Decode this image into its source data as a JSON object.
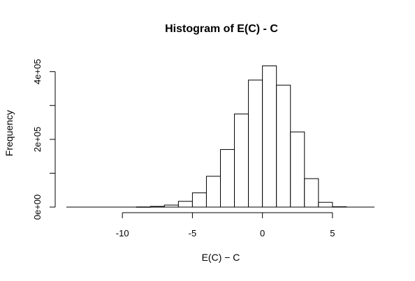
{
  "chart_data": {
    "type": "bar",
    "title": "Histogram of E(C) - C",
    "xlabel": "E(C) − C",
    "ylabel": "Frequency",
    "xlim": [
      -14,
      8
    ],
    "ylim": [
      0,
      420000
    ],
    "x_ticks": [
      -10,
      -5,
      0,
      5
    ],
    "x_tick_labels": [
      "-10",
      "-5",
      "0",
      "5"
    ],
    "y_ticks": [
      0,
      100000,
      200000,
      300000,
      400000
    ],
    "y_tick_labels": [
      "0e+00",
      "",
      "2e+05",
      "",
      "4e+05"
    ],
    "grid": false,
    "bin_edges": [
      -14,
      -13,
      -12,
      -11,
      -10,
      -9,
      -8,
      -7,
      -6,
      -5,
      -4,
      -3,
      -2,
      -1,
      0,
      1,
      2,
      3,
      4,
      5,
      6,
      7,
      8
    ],
    "values": [
      0,
      0,
      0,
      0,
      0,
      500,
      2000,
      6000,
      17000,
      42000,
      91000,
      170000,
      275000,
      375000,
      417000,
      360000,
      222000,
      84000,
      14000,
      1000,
      0,
      0
    ]
  }
}
